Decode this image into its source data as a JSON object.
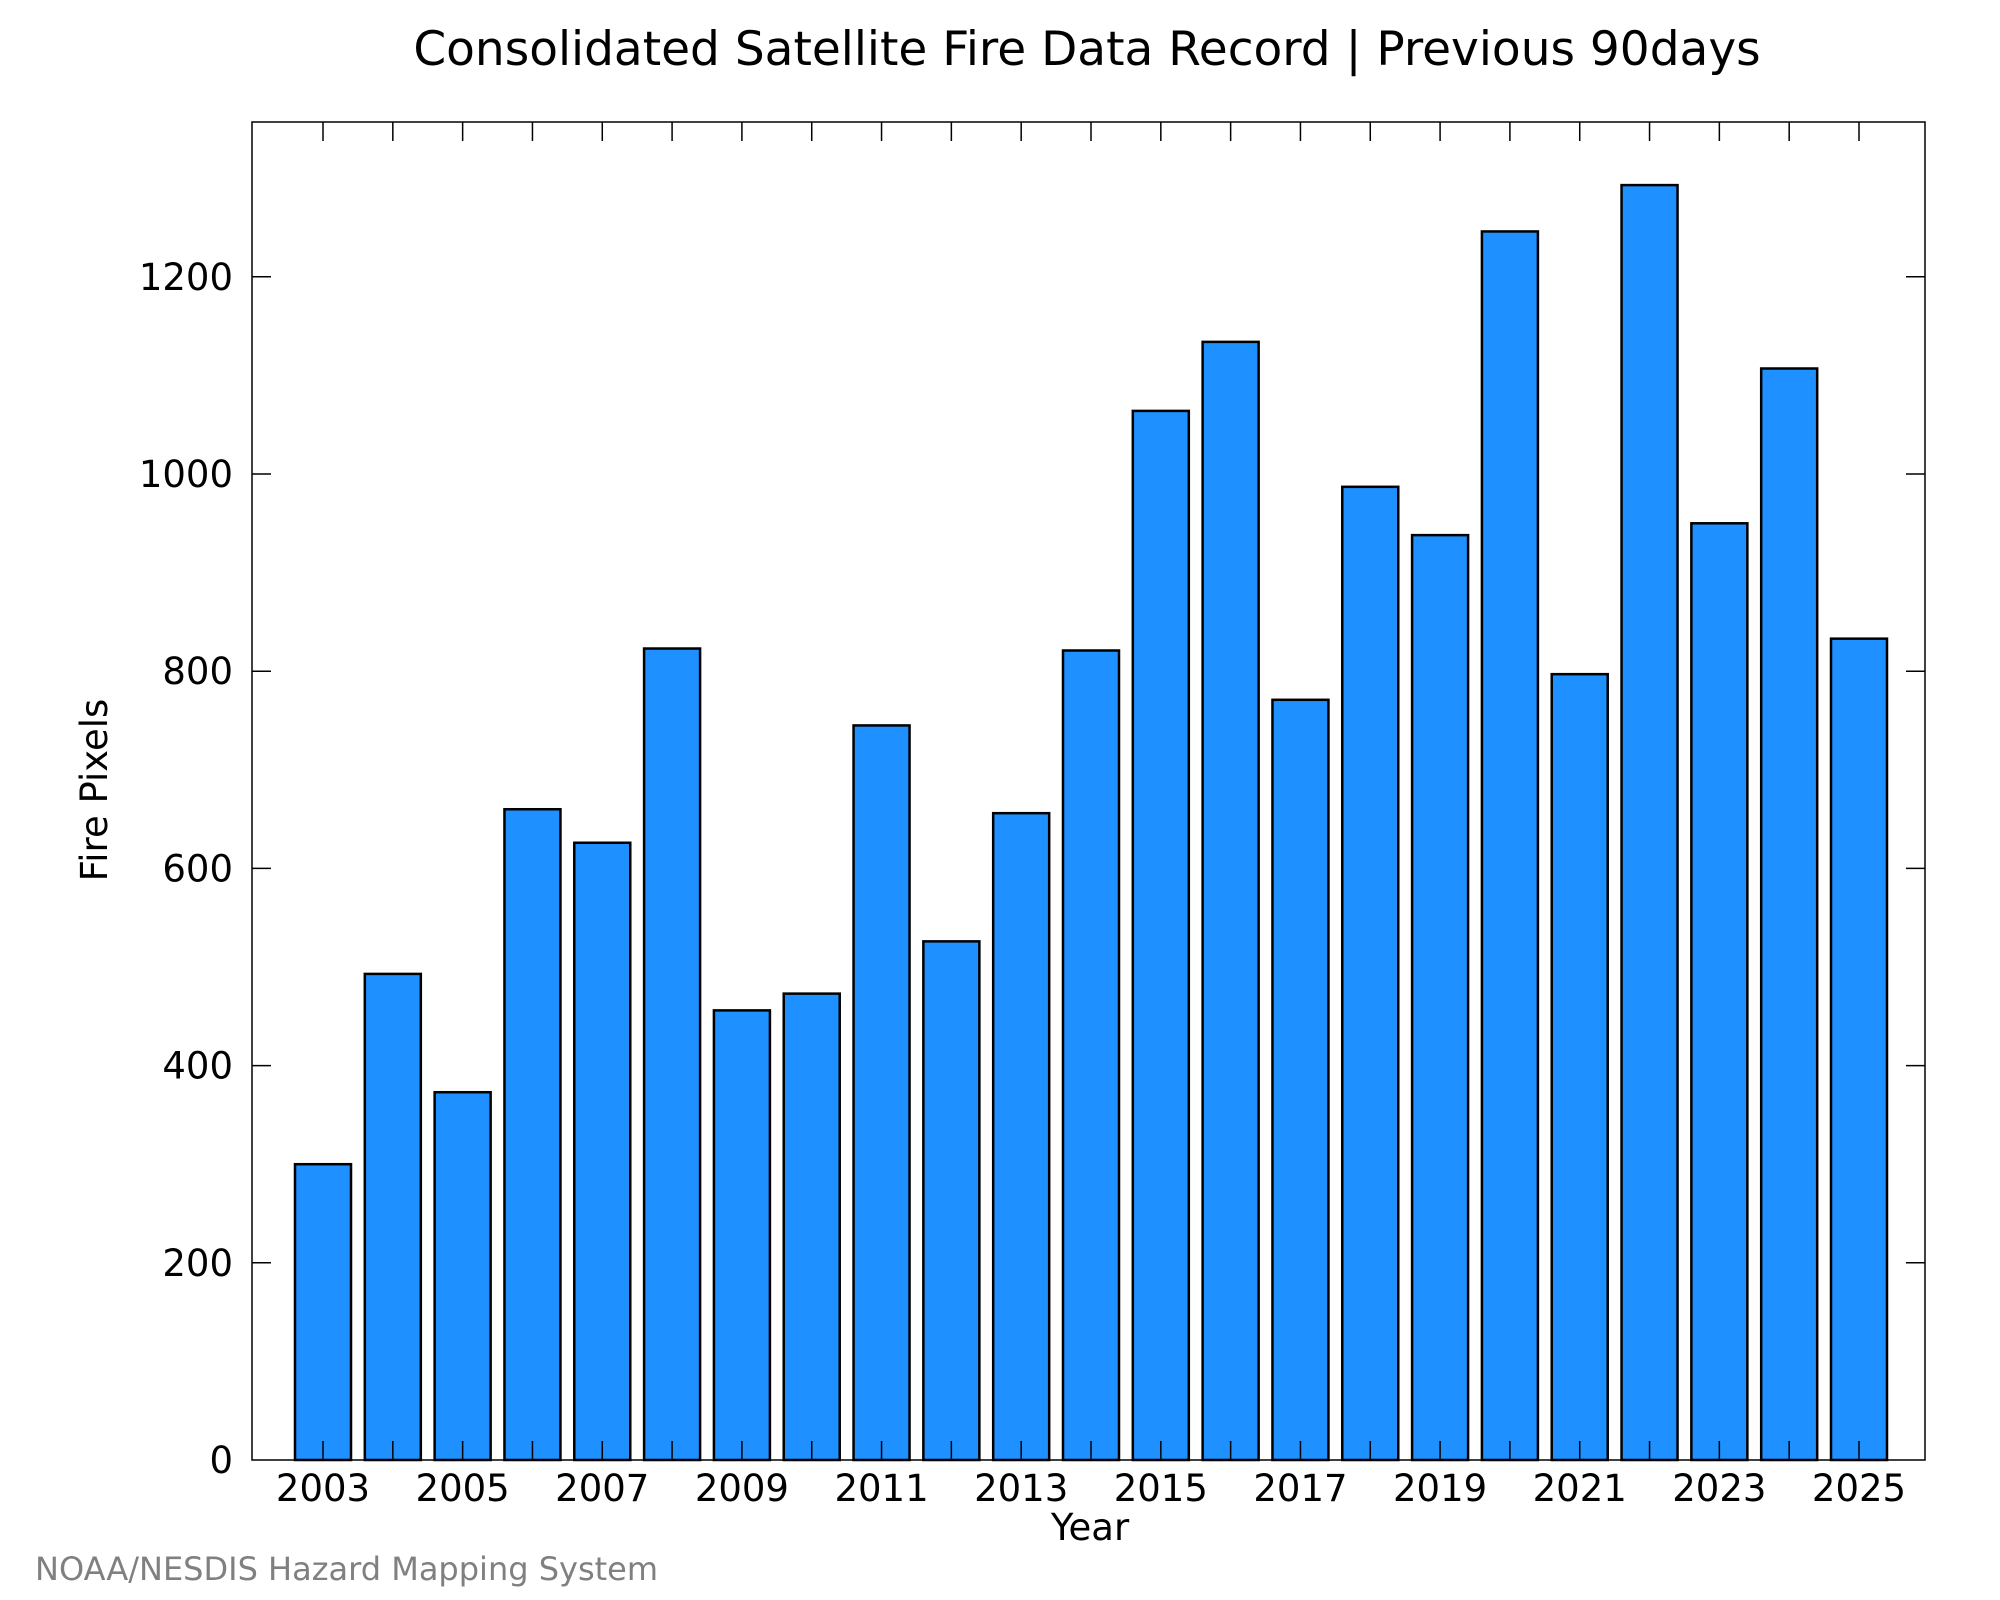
{
  "chart_data": {
    "type": "bar",
    "title": "Consolidated Satellite Fire Data Record | Previous 90days",
    "xlabel": "Year",
    "ylabel": "Fire Pixels",
    "categories": [
      "2003",
      "2004",
      "2005",
      "2006",
      "2007",
      "2008",
      "2009",
      "2010",
      "2011",
      "2012",
      "2013",
      "2014",
      "2015",
      "2016",
      "2017",
      "2018",
      "2019",
      "2020",
      "2021",
      "2022",
      "2023",
      "2024",
      "2025"
    ],
    "values": [
      300,
      493,
      373,
      660,
      626,
      823,
      456,
      473,
      745,
      526,
      656,
      821,
      1064,
      1134,
      771,
      987,
      938,
      1246,
      797,
      1293,
      950,
      1107,
      833
    ],
    "x_tick_labels": [
      "2003",
      "2005",
      "2007",
      "2009",
      "2011",
      "2013",
      "2015",
      "2017",
      "2019",
      "2021",
      "2023",
      "2025"
    ],
    "y_ticks": [
      0,
      200,
      400,
      600,
      800,
      1000,
      1200
    ],
    "ylim": [
      0,
      1357
    ],
    "bar_color": "#1e90ff",
    "edge_color": "#000000",
    "grid": false,
    "legend": "none"
  },
  "footer": {
    "credit": "NOAA/NESDIS Hazard Mapping System",
    "credit_color": "#808080"
  }
}
